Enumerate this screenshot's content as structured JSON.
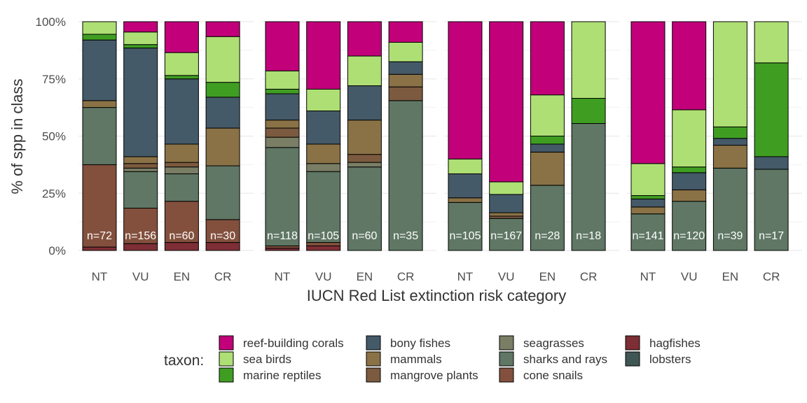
{
  "chart_data": {
    "type": "bar",
    "stacked": "percent",
    "ylabel": "% of spp in class",
    "xlabel": "IUCN Red List extinction risk category",
    "ylim": [
      0,
      1
    ],
    "yticks": [
      0,
      0.25,
      0.5,
      0.75,
      1
    ],
    "ytick_labels": [
      "0%",
      "25%",
      "50%",
      "75%",
      "100%"
    ],
    "grid": true,
    "legend_position": "bottom",
    "legend_title": "taxon:",
    "taxa": [
      {
        "name": "reef-building corals",
        "color": "#C2007A"
      },
      {
        "name": "sea birds",
        "color": "#AEDF74"
      },
      {
        "name": "marine reptiles",
        "color": "#3F9E22"
      },
      {
        "name": "bony fishes",
        "color": "#455A68"
      },
      {
        "name": "mammals",
        "color": "#8A7246"
      },
      {
        "name": "mangrove plants",
        "color": "#7B5A3F"
      },
      {
        "name": "seagrasses",
        "color": "#7A7E65"
      },
      {
        "name": "sharks and rays",
        "color": "#5F7764"
      },
      {
        "name": "cone snails",
        "color": "#83503D"
      },
      {
        "name": "hagfishes",
        "color": "#7E2E35"
      },
      {
        "name": "lobsters",
        "color": "#3F5654"
      }
    ],
    "panels": [
      {
        "bars": [
          {
            "category": "NT",
            "n_label": "n=72",
            "segments": [
              [
                "hagfishes",
                0.015
              ],
              [
                "lobsters",
                0.0
              ],
              [
                "cone snails",
                0.36
              ],
              [
                "sharks and rays",
                0.25
              ],
              [
                "seagrasses",
                0.0
              ],
              [
                "mangrove plants",
                0.0
              ],
              [
                "mammals",
                0.03
              ],
              [
                "bony fishes",
                0.265
              ],
              [
                "marine reptiles",
                0.025
              ],
              [
                "sea birds",
                0.055
              ],
              [
                "reef-building corals",
                0.0
              ]
            ]
          },
          {
            "category": "VU",
            "n_label": "n=156",
            "segments": [
              [
                "hagfishes",
                0.03
              ],
              [
                "lobsters",
                0.0
              ],
              [
                "cone snails",
                0.155
              ],
              [
                "sharks and rays",
                0.16
              ],
              [
                "seagrasses",
                0.015
              ],
              [
                "mangrove plants",
                0.02
              ],
              [
                "mammals",
                0.03
              ],
              [
                "bony fishes",
                0.475
              ],
              [
                "marine reptiles",
                0.015
              ],
              [
                "sea birds",
                0.055
              ],
              [
                "reef-building corals",
                0.045
              ]
            ]
          },
          {
            "category": "EN",
            "n_label": "n=60",
            "segments": [
              [
                "hagfishes",
                0.035
              ],
              [
                "lobsters",
                0.0
              ],
              [
                "cone snails",
                0.18
              ],
              [
                "sharks and rays",
                0.12
              ],
              [
                "seagrasses",
                0.03
              ],
              [
                "mangrove plants",
                0.02
              ],
              [
                "mammals",
                0.08
              ],
              [
                "bony fishes",
                0.285
              ],
              [
                "marine reptiles",
                0.015
              ],
              [
                "sea birds",
                0.1
              ],
              [
                "reef-building corals",
                0.135
              ]
            ]
          },
          {
            "category": "CR",
            "n_label": "n=30",
            "segments": [
              [
                "hagfishes",
                0.035
              ],
              [
                "lobsters",
                0.0
              ],
              [
                "cone snails",
                0.1
              ],
              [
                "sharks and rays",
                0.235
              ],
              [
                "seagrasses",
                0.0
              ],
              [
                "mangrove plants",
                0.0
              ],
              [
                "mammals",
                0.165
              ],
              [
                "bony fishes",
                0.135
              ],
              [
                "marine reptiles",
                0.065
              ],
              [
                "sea birds",
                0.2
              ],
              [
                "reef-building corals",
                0.065
              ]
            ]
          }
        ]
      },
      {
        "bars": [
          {
            "category": "NT",
            "n_label": "n=118",
            "segments": [
              [
                "hagfishes",
                0.01
              ],
              [
                "lobsters",
                0.0
              ],
              [
                "cone snails",
                0.01
              ],
              [
                "sharks and rays",
                0.43
              ],
              [
                "seagrasses",
                0.045
              ],
              [
                "mangrove plants",
                0.04
              ],
              [
                "mammals",
                0.035
              ],
              [
                "bony fishes",
                0.115
              ],
              [
                "marine reptiles",
                0.02
              ],
              [
                "sea birds",
                0.08
              ],
              [
                "reef-building corals",
                0.215
              ]
            ]
          },
          {
            "category": "VU",
            "n_label": "n=105",
            "segments": [
              [
                "hagfishes",
                0.02
              ],
              [
                "lobsters",
                0.0
              ],
              [
                "cone snails",
                0.015
              ],
              [
                "sharks and rays",
                0.31
              ],
              [
                "seagrasses",
                0.035
              ],
              [
                "mangrove plants",
                0.0
              ],
              [
                "mammals",
                0.085
              ],
              [
                "bony fishes",
                0.145
              ],
              [
                "marine reptiles",
                0.0
              ],
              [
                "sea birds",
                0.095
              ],
              [
                "reef-building corals",
                0.295
              ]
            ]
          },
          {
            "category": "EN",
            "n_label": "n=60",
            "segments": [
              [
                "hagfishes",
                0.0
              ],
              [
                "lobsters",
                0.0
              ],
              [
                "cone snails",
                0.0
              ],
              [
                "sharks and rays",
                0.365
              ],
              [
                "seagrasses",
                0.02
              ],
              [
                "mangrove plants",
                0.035
              ],
              [
                "mammals",
                0.15
              ],
              [
                "bony fishes",
                0.15
              ],
              [
                "marine reptiles",
                0.0
              ],
              [
                "sea birds",
                0.13
              ],
              [
                "reef-building corals",
                0.15
              ]
            ]
          },
          {
            "category": "CR",
            "n_label": "n=35",
            "segments": [
              [
                "hagfishes",
                0.0
              ],
              [
                "lobsters",
                0.0
              ],
              [
                "cone snails",
                0.0
              ],
              [
                "sharks and rays",
                0.655
              ],
              [
                "seagrasses",
                0.0
              ],
              [
                "mangrove plants",
                0.06
              ],
              [
                "mammals",
                0.055
              ],
              [
                "bony fishes",
                0.055
              ],
              [
                "marine reptiles",
                0.0
              ],
              [
                "sea birds",
                0.085
              ],
              [
                "reef-building corals",
                0.09
              ]
            ]
          }
        ]
      },
      {
        "bars": [
          {
            "category": "NT",
            "n_label": "n=105",
            "segments": [
              [
                "hagfishes",
                0.0
              ],
              [
                "lobsters",
                0.0
              ],
              [
                "cone snails",
                0.0
              ],
              [
                "sharks and rays",
                0.21
              ],
              [
                "seagrasses",
                0.0
              ],
              [
                "mangrove plants",
                0.0
              ],
              [
                "mammals",
                0.02
              ],
              [
                "bony fishes",
                0.105
              ],
              [
                "marine reptiles",
                0.0
              ],
              [
                "sea birds",
                0.065
              ],
              [
                "reef-building corals",
                0.6
              ]
            ]
          },
          {
            "category": "VU",
            "n_label": "n=167",
            "segments": [
              [
                "hagfishes",
                0.0
              ],
              [
                "lobsters",
                0.0
              ],
              [
                "cone snails",
                0.0
              ],
              [
                "sharks and rays",
                0.14
              ],
              [
                "seagrasses",
                0.0
              ],
              [
                "mangrove plants",
                0.01
              ],
              [
                "mammals",
                0.015
              ],
              [
                "bony fishes",
                0.08
              ],
              [
                "marine reptiles",
                0.0
              ],
              [
                "sea birds",
                0.055
              ],
              [
                "reef-building corals",
                0.7
              ]
            ]
          },
          {
            "category": "EN",
            "n_label": "n=28",
            "segments": [
              [
                "hagfishes",
                0.0
              ],
              [
                "lobsters",
                0.0
              ],
              [
                "cone snails",
                0.0
              ],
              [
                "sharks and rays",
                0.285
              ],
              [
                "seagrasses",
                0.0
              ],
              [
                "mangrove plants",
                0.0
              ],
              [
                "mammals",
                0.145
              ],
              [
                "bony fishes",
                0.035
              ],
              [
                "marine reptiles",
                0.035
              ],
              [
                "sea birds",
                0.18
              ],
              [
                "reef-building corals",
                0.32
              ]
            ]
          },
          {
            "category": "CR",
            "n_label": "n=18",
            "segments": [
              [
                "hagfishes",
                0.0
              ],
              [
                "lobsters",
                0.0
              ],
              [
                "cone snails",
                0.0
              ],
              [
                "sharks and rays",
                0.555
              ],
              [
                "seagrasses",
                0.0
              ],
              [
                "mangrove plants",
                0.0
              ],
              [
                "mammals",
                0.0
              ],
              [
                "bony fishes",
                0.0
              ],
              [
                "marine reptiles",
                0.11
              ],
              [
                "sea birds",
                0.335
              ],
              [
                "reef-building corals",
                0.0
              ]
            ]
          }
        ]
      },
      {
        "bars": [
          {
            "category": "NT",
            "n_label": "n=141",
            "segments": [
              [
                "hagfishes",
                0.0
              ],
              [
                "lobsters",
                0.0
              ],
              [
                "cone snails",
                0.0
              ],
              [
                "sharks and rays",
                0.16
              ],
              [
                "seagrasses",
                0.0
              ],
              [
                "mangrove plants",
                0.0
              ],
              [
                "mammals",
                0.03
              ],
              [
                "bony fishes",
                0.035
              ],
              [
                "marine reptiles",
                0.015
              ],
              [
                "sea birds",
                0.14
              ],
              [
                "reef-building corals",
                0.62
              ]
            ]
          },
          {
            "category": "VU",
            "n_label": "n=120",
            "segments": [
              [
                "hagfishes",
                0.0
              ],
              [
                "lobsters",
                0.0
              ],
              [
                "cone snails",
                0.0
              ],
              [
                "sharks and rays",
                0.215
              ],
              [
                "seagrasses",
                0.0
              ],
              [
                "mangrove plants",
                0.0
              ],
              [
                "mammals",
                0.05
              ],
              [
                "bony fishes",
                0.075
              ],
              [
                "marine reptiles",
                0.025
              ],
              [
                "sea birds",
                0.25
              ],
              [
                "reef-building corals",
                0.385
              ]
            ]
          },
          {
            "category": "EN",
            "n_label": "n=39",
            "segments": [
              [
                "hagfishes",
                0.0
              ],
              [
                "lobsters",
                0.0
              ],
              [
                "cone snails",
                0.0
              ],
              [
                "sharks and rays",
                0.36
              ],
              [
                "seagrasses",
                0.0
              ],
              [
                "mangrove plants",
                0.0
              ],
              [
                "mammals",
                0.1
              ],
              [
                "bony fishes",
                0.03
              ],
              [
                "marine reptiles",
                0.05
              ],
              [
                "sea birds",
                0.46
              ],
              [
                "reef-building corals",
                0.0
              ]
            ]
          },
          {
            "category": "CR",
            "n_label": "n=17",
            "segments": [
              [
                "hagfishes",
                0.0
              ],
              [
                "lobsters",
                0.0
              ],
              [
                "cone snails",
                0.0
              ],
              [
                "sharks and rays",
                0.355
              ],
              [
                "seagrasses",
                0.0
              ],
              [
                "mangrove plants",
                0.0
              ],
              [
                "mammals",
                0.0
              ],
              [
                "bony fishes",
                0.055
              ],
              [
                "marine reptiles",
                0.41
              ],
              [
                "sea birds",
                0.18
              ],
              [
                "reef-building corals",
                0.0
              ]
            ]
          }
        ]
      }
    ]
  }
}
